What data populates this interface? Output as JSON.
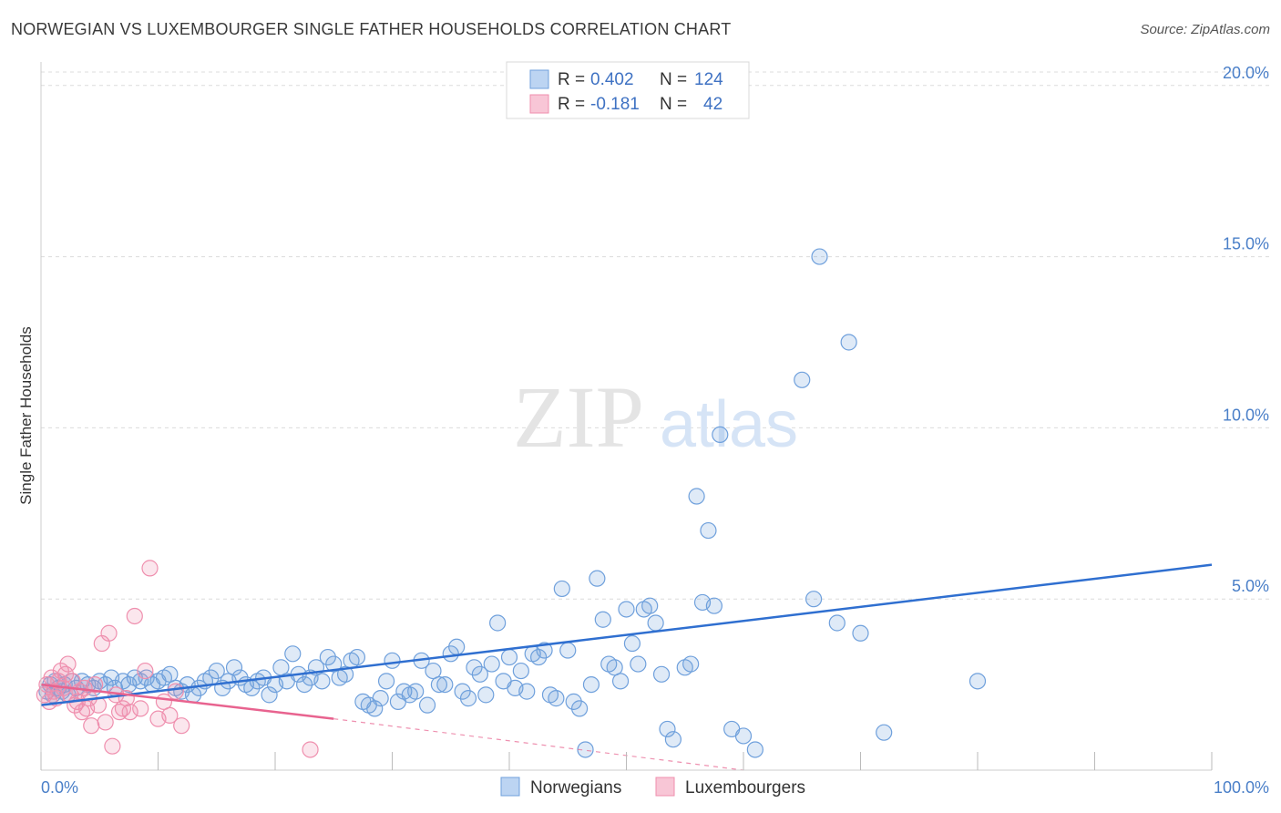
{
  "header": {
    "title": "NORWEGIAN VS LUXEMBOURGER SINGLE FATHER HOUSEHOLDS CORRELATION CHART",
    "source": "Source: ZipAtlas.com"
  },
  "watermark": {
    "zip": "ZIP",
    "atlas": "atlas"
  },
  "colors": {
    "blue": "#6fa0dc",
    "blue_line": "#2f6fd0",
    "pink": "#ef8fae",
    "pink_line": "#e8638f",
    "grid": "#dcdcdc",
    "tick_text": "#4a7fc8"
  },
  "legend_top": [
    {
      "r_label": "R =",
      "r_value": "0.402",
      "n_label": "N =",
      "n_value": "124"
    },
    {
      "r_label": "R =",
      "r_value": "-0.181",
      "n_label": "N =",
      "n_value": "42"
    }
  ],
  "legend_bottom": [
    "Norwegians",
    "Luxembourgers"
  ],
  "chart_data": {
    "type": "scatter",
    "title": "NORWEGIAN VS LUXEMBOURGER SINGLE FATHER HOUSEHOLDS CORRELATION CHART",
    "xlabel": "",
    "ylabel": "Single Father Households",
    "xlim": [
      0,
      100
    ],
    "ylim": [
      0,
      20.5
    ],
    "x_tick_labels": [
      "0.0%",
      "100.0%"
    ],
    "y_ticks": [
      5,
      10,
      15,
      20
    ],
    "y_tick_labels": [
      "5.0%",
      "10.0%",
      "15.0%",
      "20.0%"
    ],
    "series": [
      {
        "name": "Norwegians",
        "r": 0.402,
        "n": 124,
        "trend": {
          "x0": 0,
          "y0": 1.9,
          "x1": 100,
          "y1": 6.0
        },
        "points": [
          [
            0.5,
            2.3
          ],
          [
            0.8,
            2.5
          ],
          [
            1.0,
            2.2
          ],
          [
            1.2,
            2.6
          ],
          [
            1.5,
            2.4
          ],
          [
            1.8,
            2.3
          ],
          [
            2.0,
            2.5
          ],
          [
            2.3,
            2.2
          ],
          [
            2.6,
            2.6
          ],
          [
            3.0,
            2.4
          ],
          [
            3.5,
            2.6
          ],
          [
            4.0,
            2.5
          ],
          [
            4.5,
            2.4
          ],
          [
            5.0,
            2.6
          ],
          [
            5.5,
            2.5
          ],
          [
            6.0,
            2.7
          ],
          [
            6.3,
            2.4
          ],
          [
            7.0,
            2.6
          ],
          [
            7.5,
            2.5
          ],
          [
            8.0,
            2.7
          ],
          [
            8.5,
            2.6
          ],
          [
            9.0,
            2.7
          ],
          [
            9.5,
            2.5
          ],
          [
            10.0,
            2.6
          ],
          [
            10.5,
            2.7
          ],
          [
            11.0,
            2.8
          ],
          [
            11.5,
            2.4
          ],
          [
            12.0,
            2.3
          ],
          [
            12.5,
            2.5
          ],
          [
            13.0,
            2.2
          ],
          [
            13.5,
            2.4
          ],
          [
            14.0,
            2.6
          ],
          [
            14.5,
            2.7
          ],
          [
            15.0,
            2.9
          ],
          [
            15.5,
            2.4
          ],
          [
            16.0,
            2.6
          ],
          [
            16.5,
            3.0
          ],
          [
            17.0,
            2.7
          ],
          [
            17.5,
            2.5
          ],
          [
            18.0,
            2.4
          ],
          [
            18.5,
            2.6
          ],
          [
            19.0,
            2.7
          ],
          [
            19.5,
            2.2
          ],
          [
            20.0,
            2.5
          ],
          [
            20.5,
            3.0
          ],
          [
            21.0,
            2.6
          ],
          [
            21.5,
            3.4
          ],
          [
            22.0,
            2.8
          ],
          [
            22.5,
            2.5
          ],
          [
            23.0,
            2.7
          ],
          [
            23.5,
            3.0
          ],
          [
            24.0,
            2.6
          ],
          [
            24.5,
            3.3
          ],
          [
            25.0,
            3.1
          ],
          [
            25.5,
            2.7
          ],
          [
            26.0,
            2.8
          ],
          [
            26.5,
            3.2
          ],
          [
            27.0,
            3.3
          ],
          [
            27.5,
            2.0
          ],
          [
            28.0,
            1.9
          ],
          [
            28.5,
            1.8
          ],
          [
            29.0,
            2.1
          ],
          [
            29.5,
            2.6
          ],
          [
            30.0,
            3.2
          ],
          [
            30.5,
            2.0
          ],
          [
            31.0,
            2.3
          ],
          [
            31.5,
            2.2
          ],
          [
            32.0,
            2.3
          ],
          [
            32.5,
            3.2
          ],
          [
            33.0,
            1.9
          ],
          [
            33.5,
            2.9
          ],
          [
            34.0,
            2.5
          ],
          [
            34.5,
            2.5
          ],
          [
            35.0,
            3.4
          ],
          [
            35.5,
            3.6
          ],
          [
            36.0,
            2.3
          ],
          [
            36.5,
            2.1
          ],
          [
            37.0,
            3.0
          ],
          [
            37.5,
            2.8
          ],
          [
            38.0,
            2.2
          ],
          [
            38.5,
            3.1
          ],
          [
            39.0,
            4.3
          ],
          [
            39.5,
            2.6
          ],
          [
            40.0,
            3.3
          ],
          [
            40.5,
            2.4
          ],
          [
            41.0,
            2.9
          ],
          [
            41.5,
            2.3
          ],
          [
            42.0,
            3.4
          ],
          [
            42.5,
            3.3
          ],
          [
            43.0,
            3.5
          ],
          [
            43.5,
            2.2
          ],
          [
            44.0,
            2.1
          ],
          [
            44.5,
            5.3
          ],
          [
            45.0,
            3.5
          ],
          [
            45.5,
            2.0
          ],
          [
            46.0,
            1.8
          ],
          [
            46.5,
            0.6
          ],
          [
            47.0,
            2.5
          ],
          [
            47.5,
            5.6
          ],
          [
            48.0,
            4.4
          ],
          [
            48.5,
            3.1
          ],
          [
            49.0,
            3.0
          ],
          [
            49.5,
            2.6
          ],
          [
            50.0,
            4.7
          ],
          [
            50.5,
            3.7
          ],
          [
            51.0,
            3.1
          ],
          [
            51.5,
            4.7
          ],
          [
            52.0,
            4.8
          ],
          [
            52.5,
            4.3
          ],
          [
            53.0,
            2.8
          ],
          [
            53.5,
            1.2
          ],
          [
            54.0,
            0.9
          ],
          [
            55.0,
            3.0
          ],
          [
            55.5,
            3.1
          ],
          [
            56.0,
            8.0
          ],
          [
            56.5,
            4.9
          ],
          [
            57.0,
            7.0
          ],
          [
            57.5,
            4.8
          ],
          [
            58.0,
            9.8
          ],
          [
            59.0,
            1.2
          ],
          [
            60.0,
            1.0
          ],
          [
            61.0,
            0.6
          ],
          [
            65.0,
            11.4
          ],
          [
            66.0,
            5.0
          ],
          [
            66.5,
            15.0
          ],
          [
            68.0,
            4.3
          ],
          [
            69.0,
            12.5
          ],
          [
            70.0,
            4.0
          ],
          [
            72.0,
            1.1
          ],
          [
            80.0,
            2.6
          ]
        ]
      },
      {
        "name": "Luxembourgers",
        "r": -0.181,
        "n": 42,
        "trend": {
          "x0": 0,
          "y0": 2.5,
          "x1": 25,
          "y1": 1.5,
          "dash_to_x": 60,
          "dash_to_y": 0.0
        },
        "points": [
          [
            0.3,
            2.2
          ],
          [
            0.5,
            2.5
          ],
          [
            0.7,
            2.0
          ],
          [
            0.9,
            2.7
          ],
          [
            1.1,
            2.3
          ],
          [
            1.3,
            2.1
          ],
          [
            1.5,
            2.6
          ],
          [
            1.7,
            2.9
          ],
          [
            1.9,
            2.4
          ],
          [
            2.1,
            2.8
          ],
          [
            2.3,
            3.1
          ],
          [
            2.5,
            2.2
          ],
          [
            2.7,
            2.6
          ],
          [
            2.9,
            1.9
          ],
          [
            3.1,
            2.0
          ],
          [
            3.3,
            2.3
          ],
          [
            3.5,
            1.7
          ],
          [
            3.7,
            2.4
          ],
          [
            3.9,
            1.8
          ],
          [
            4.1,
            2.1
          ],
          [
            4.3,
            1.3
          ],
          [
            4.6,
            2.5
          ],
          [
            4.9,
            1.9
          ],
          [
            5.2,
            3.7
          ],
          [
            5.5,
            1.4
          ],
          [
            5.8,
            4.0
          ],
          [
            6.1,
            0.7
          ],
          [
            6.4,
            2.2
          ],
          [
            6.7,
            1.7
          ],
          [
            7.0,
            1.8
          ],
          [
            7.3,
            2.1
          ],
          [
            7.6,
            1.7
          ],
          [
            8.0,
            4.5
          ],
          [
            8.5,
            1.8
          ],
          [
            8.9,
            2.9
          ],
          [
            9.3,
            5.9
          ],
          [
            10.0,
            1.5
          ],
          [
            10.5,
            2.0
          ],
          [
            11.0,
            1.6
          ],
          [
            11.5,
            2.3
          ],
          [
            12.0,
            1.3
          ],
          [
            23.0,
            0.6
          ]
        ]
      }
    ]
  }
}
